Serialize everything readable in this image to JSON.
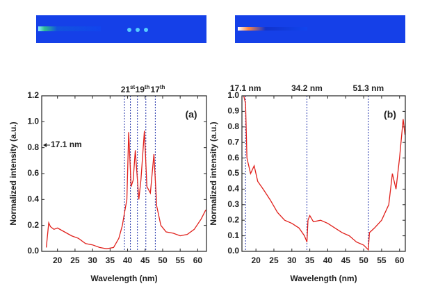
{
  "chart_data": [
    {
      "type": "line",
      "panel_label": "(a)",
      "x_label": "Wavelength (nm)",
      "y_label": "Normalized intensity (a.u.)",
      "xlim": [
        15.5,
        62.5
      ],
      "xticks": [
        20,
        25,
        30,
        35,
        40,
        45,
        50,
        55,
        60
      ],
      "ylim": [
        0,
        1.2
      ],
      "yticks": [
        {
          "value": 0,
          "label": "0.0"
        },
        0.2,
        0.4,
        0.6,
        0.8,
        {
          "value": 1,
          "label": "1.0"
        },
        1.2
      ],
      "series": [
        {
          "color": "#e0201b",
          "x": [
            16.8,
            17.5,
            18,
            19,
            20,
            22,
            24,
            26,
            28,
            30,
            32,
            34,
            36,
            37.5,
            38.5,
            39,
            39.8,
            40.3,
            41,
            41.6,
            42.2,
            43.2,
            43.8,
            44.8,
            45.5,
            46.5,
            47.5,
            48.3,
            49.5,
            51,
            53,
            55,
            57,
            59,
            61,
            62.3
          ],
          "values": [
            0.03,
            0.22,
            0.19,
            0.17,
            0.18,
            0.15,
            0.12,
            0.1,
            0.06,
            0.05,
            0.03,
            0.02,
            0.03,
            0.1,
            0.2,
            0.28,
            0.4,
            0.92,
            0.5,
            0.55,
            0.78,
            0.4,
            0.55,
            0.93,
            0.5,
            0.45,
            0.75,
            0.35,
            0.2,
            0.15,
            0.14,
            0.12,
            0.13,
            0.17,
            0.25,
            0.32
          ]
        }
      ],
      "vlines": [
        39.1,
        40.8,
        42.8,
        45.2,
        47.9
      ],
      "vline_color": "#2233aa",
      "harmonic_labels": [
        {
          "number": "21",
          "suffix": "st"
        },
        {
          "number": "19",
          "suffix": "th"
        },
        {
          "number": "17",
          "suffix": "th"
        }
      ],
      "arrow_label": "17.1 nm"
    },
    {
      "type": "line",
      "panel_label": "(b)",
      "x_label": "Wavelength (nm)",
      "y_label": "Normalized intensity (a.u.)",
      "xlim": [
        16.1,
        61.6
      ],
      "xticks": [
        20,
        25,
        30,
        35,
        40,
        45,
        50,
        55,
        60
      ],
      "ylim": [
        0,
        1
      ],
      "yticks": [
        {
          "value": 0,
          "label": "0.0"
        },
        0.1,
        0.2,
        0.3,
        0.4,
        0.5,
        0.6,
        0.7,
        0.8,
        0.9,
        {
          "value": 1,
          "label": "1.0"
        }
      ],
      "series": [
        {
          "color": "#e0201b",
          "x": [
            16.6,
            17.1,
            17.5,
            18.5,
            19.5,
            20.5,
            22,
            24,
            26,
            28,
            30,
            32,
            33.5,
            34.2,
            34.5,
            35,
            36,
            38,
            40,
            42,
            44,
            46,
            48,
            50,
            51.3,
            51.6,
            53,
            55,
            57,
            58,
            59,
            60,
            61,
            61.5
          ],
          "values": [
            1,
            0.95,
            0.6,
            0.5,
            0.55,
            0.45,
            0.4,
            0.33,
            0.25,
            0.2,
            0.18,
            0.15,
            0.1,
            0.06,
            0.2,
            0.23,
            0.19,
            0.2,
            0.18,
            0.15,
            0.12,
            0.1,
            0.06,
            0.04,
            0.01,
            0.12,
            0.15,
            0.2,
            0.3,
            0.5,
            0.4,
            0.6,
            0.85,
            0.75
          ]
        }
      ],
      "vlines": [
        17.1,
        34.2,
        51.3
      ],
      "vline_color": "#2233aa",
      "vline_labels": [
        "17.1 nm",
        "34.2 nm",
        "51.3 nm"
      ]
    }
  ]
}
